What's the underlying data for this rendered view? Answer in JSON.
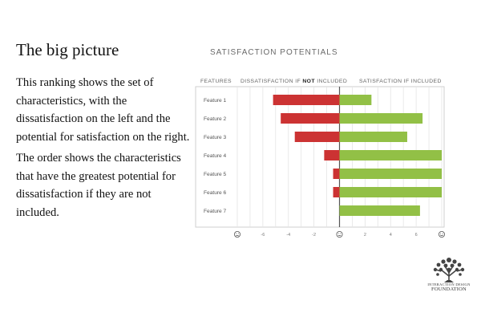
{
  "slide": {
    "heading": "The big picture",
    "paragraph1": "This ranking shows the set of characteristics, with the dissatisfaction on the left and the potential for satisfaction on the right.",
    "paragraph2": "The order shows the characteristics that have the greatest potential for dissatisfaction if they are not included."
  },
  "logo": {
    "line1": "INTERACTION DESIGN",
    "line2": "FOUNDATION"
  },
  "chart_data": {
    "type": "bar",
    "title": "SATISFACTION POTENTIALS",
    "header_features": "FEATURES",
    "header_left_prefix": "DISSATISFACTION IF ",
    "header_left_emph": "NOT",
    "header_left_suffix": " INCLUDED",
    "header_right": "SATISFACTION IF INCLUDED",
    "categories": [
      "Feature 1",
      "Feature 2",
      "Feature 3",
      "Feature 4",
      "Feature 5",
      "Feature 6",
      "Feature 7"
    ],
    "series": [
      {
        "values": [
          -5.2,
          -4.6,
          -3.5,
          -1.2,
          -0.5,
          -0.5,
          0
        ]
      },
      {
        "values": [
          2.5,
          6.5,
          5.3,
          8.0,
          8.0,
          8.0,
          6.3
        ]
      }
    ],
    "xlim": [
      -8,
      8
    ],
    "ticks": [
      -6,
      -4,
      -2,
      0,
      2,
      4,
      6
    ],
    "tick_labels": [
      "-6",
      "-4",
      "-2",
      "0",
      "2",
      "4",
      "6"
    ],
    "axis_end_left": "sad-face",
    "axis_end_right": "happy-face",
    "axis_center": "neutral-face",
    "grid": true,
    "colors": {
      "negative": "#cc3333",
      "positive": "#92c046",
      "grid": "#e4e4e4",
      "axis": "#555555",
      "frame": "#cfcfcf"
    }
  }
}
